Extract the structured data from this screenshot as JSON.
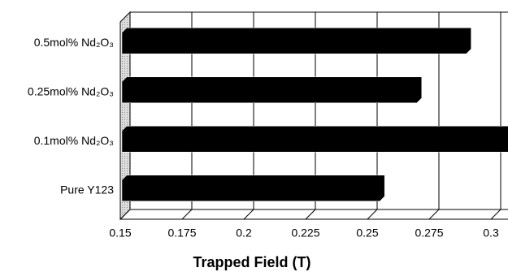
{
  "chart_data": {
    "type": "bar3d_horizontal",
    "xlabel": "Trapped Field (T)",
    "categories": [
      "0.5mol% Nd₂O₃",
      "0.25mol% Nd₂O₃",
      "0.1mol% Nd₂O₃",
      "Pure Y123"
    ],
    "values": [
      0.29,
      0.27,
      0.31,
      0.255
    ],
    "color": "#000000",
    "xlim": [
      0.15,
      0.3
    ],
    "xticks": [
      0.15,
      0.175,
      0.2,
      0.225,
      0.25,
      0.275,
      0.3
    ],
    "grid": true
  }
}
